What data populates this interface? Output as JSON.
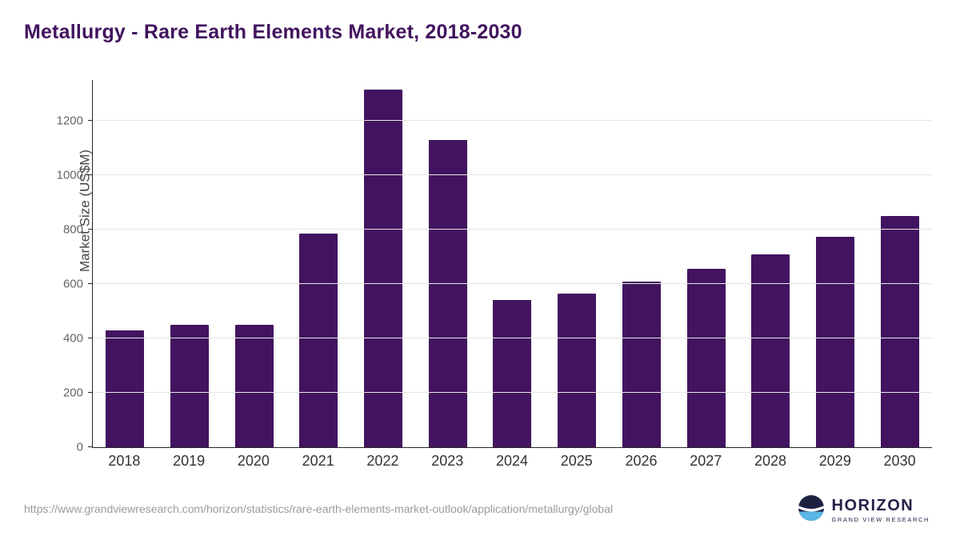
{
  "title": "Metallurgy - Rare Earth Elements Market, 2018-2030",
  "chart_data": {
    "type": "bar",
    "title": "Metallurgy - Rare Earth Elements Market, 2018-2030",
    "categories": [
      "2018",
      "2019",
      "2020",
      "2021",
      "2022",
      "2023",
      "2024",
      "2025",
      "2026",
      "2027",
      "2028",
      "2029",
      "2030"
    ],
    "values": [
      430,
      450,
      450,
      785,
      1315,
      1130,
      540,
      565,
      610,
      655,
      710,
      775,
      850
    ],
    "xlabel": "",
    "ylabel": "Market Size (US$M)",
    "ylim": [
      0,
      1350
    ],
    "yticks": [
      0,
      200,
      400,
      600,
      800,
      1000,
      1200
    ],
    "grid": true,
    "legend": "none",
    "bar_color": "#42145F"
  },
  "footer": {
    "source_url": "https://www.grandviewresearch.com/horizon/statistics/rare-earth-elements-market-outlook/application/metallurgy/global",
    "logo_name": "HORIZON",
    "logo_subtitle": "GRAND VIEW RESEARCH"
  },
  "colors": {
    "title": "#42145F",
    "bar": "#42145F",
    "gridline": "#E6E6E6",
    "axis": "#262626",
    "logo_navy": "#1C2240",
    "logo_blue": "#5AB6E4"
  }
}
